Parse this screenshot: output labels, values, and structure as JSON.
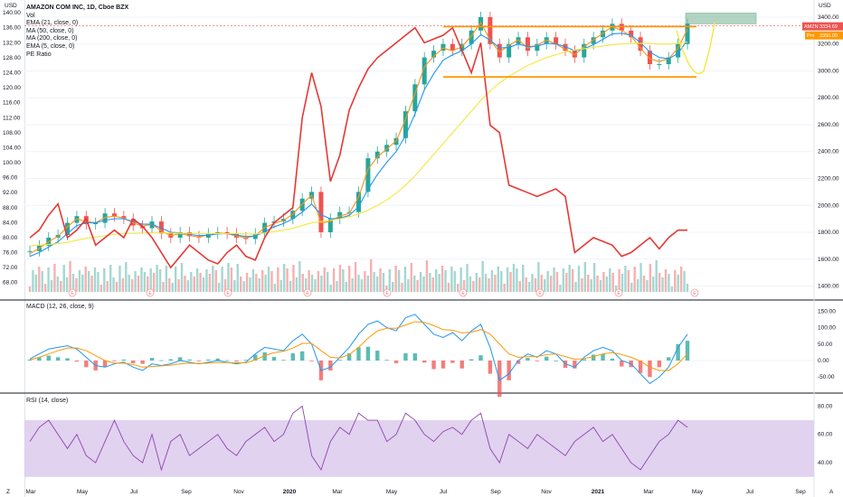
{
  "header": {
    "left_axis_unit": "USD",
    "right_axis_unit": "USD",
    "symbol_title": "AMAZON COM INC, 1D, Cboe BZX",
    "studies": [
      "Vol",
      "EMA (21, close, 0)",
      "MA (50, close, 0)",
      "MA (200, close, 0)",
      "EMA (5, close, 0)",
      "PE Ratio"
    ]
  },
  "badges": {
    "price_tag": "AMZN",
    "price_value": "3334.69",
    "pre_tag": "Pre",
    "pre_value": "3350.00",
    "earnings_marker": "E"
  },
  "colors": {
    "candle_up": "#26a69a",
    "candle_down": "#ef5350",
    "ema21": "#f7931a",
    "ma50": "#2196f3",
    "ma200": "#f5e642",
    "ema5": "#7b1fa2",
    "pe_ratio": "#e53935",
    "channel": "#ff9800",
    "target_box": "#7fb89a",
    "macd_line": "#2196f3",
    "signal_line": "#ff9800",
    "rsi_line": "#8e44ad",
    "rsi_band": "#d9c7ec"
  },
  "panes": {
    "macd_label": "MACD (12, 26, close, 9)",
    "rsi_label": "RSI (14, close)"
  },
  "chart_data": {
    "type": "line",
    "title": "AMAZON COM INC, 1D, Cboe BZX",
    "xaxis": {
      "labels": [
        "Mar",
        "May",
        "Jul",
        "Sep",
        "Nov",
        "2020",
        "Mar",
        "May",
        "Jul",
        "Sep",
        "Nov",
        "2021",
        "Mar",
        "May",
        "Jul",
        "Sep"
      ]
    },
    "price_axis_right": {
      "unit": "USD",
      "ticks": [
        1400,
        1600,
        1800,
        2000,
        2200,
        2400,
        2600,
        2800,
        3000,
        3200,
        3400
      ],
      "range": [
        1370,
        3460
      ]
    },
    "pe_axis_left": {
      "unit": "USD",
      "ticks": [
        68.0,
        72.0,
        76.0,
        80.0,
        84.0,
        88.0,
        92.0,
        96.0,
        100.0,
        104.0,
        108.0,
        112.0,
        116.0,
        120.0,
        124.0,
        128.0,
        132.0,
        136.0,
        140.0
      ],
      "range": [
        66.0,
        141.0
      ]
    },
    "series": [
      {
        "name": "AMZN",
        "values": [
          1660,
          1700,
          1760,
          1780,
          1870,
          1920,
          1860,
          1870,
          1940,
          1920,
          1900,
          1850,
          1830,
          1880,
          1790,
          1760,
          1800,
          1770,
          1760,
          1790,
          1800,
          1790,
          1760,
          1750,
          1790,
          1870,
          1880,
          1900,
          1960,
          2050,
          2100,
          1800,
          1900,
          1950,
          1950,
          2100,
          2350,
          2400,
          2450,
          2500,
          2700,
          2900,
          3100,
          3150,
          3200,
          3150,
          3200,
          3300,
          3400,
          3200,
          3100,
          3200,
          3250,
          3150,
          3200,
          3250,
          3200,
          3150,
          3100,
          3200,
          3250,
          3300,
          3350,
          3300,
          3250,
          3150,
          3050,
          3050,
          3100,
          3200,
          3350
        ]
      },
      {
        "name": "EMA (21, close, 0)",
        "values": [
          1640,
          1680,
          1730,
          1770,
          1840,
          1900,
          1880,
          1870,
          1910,
          1920,
          1905,
          1870,
          1845,
          1860,
          1810,
          1775,
          1790,
          1775,
          1765,
          1780,
          1795,
          1790,
          1772,
          1758,
          1775,
          1835,
          1865,
          1888,
          1935,
          2010,
          2075,
          1870,
          1880,
          1920,
          1940,
          2060,
          2270,
          2360,
          2420,
          2480,
          2640,
          2830,
          3030,
          3110,
          3170,
          3150,
          3180,
          3260,
          3360,
          3230,
          3140,
          3190,
          3230,
          3170,
          3190,
          3230,
          3200,
          3160,
          3120,
          3180,
          3230,
          3280,
          3330,
          3300,
          3260,
          3170,
          3090,
          3070,
          3090,
          3170,
          3310
        ]
      },
      {
        "name": "MA (50, close, 0)",
        "values": [
          1620,
          1650,
          1690,
          1730,
          1790,
          1850,
          1870,
          1870,
          1890,
          1900,
          1900,
          1880,
          1860,
          1860,
          1830,
          1800,
          1795,
          1785,
          1775,
          1778,
          1788,
          1790,
          1780,
          1768,
          1772,
          1805,
          1840,
          1865,
          1900,
          1950,
          2010,
          1930,
          1900,
          1905,
          1925,
          1990,
          2120,
          2230,
          2320,
          2400,
          2520,
          2680,
          2860,
          2980,
          3080,
          3120,
          3150,
          3200,
          3270,
          3230,
          3170,
          3175,
          3200,
          3180,
          3185,
          3205,
          3200,
          3180,
          3150,
          3165,
          3195,
          3235,
          3275,
          3280,
          3265,
          3210,
          3140,
          3100,
          3090,
          3130,
          3230
        ]
      },
      {
        "name": "MA (200, close, 0)",
        "values": [
          1700,
          1705,
          1710,
          1715,
          1725,
          1740,
          1755,
          1765,
          1775,
          1785,
          1790,
          1792,
          1793,
          1795,
          1795,
          1794,
          1793,
          1792,
          1790,
          1790,
          1790,
          1790,
          1790,
          1788,
          1787,
          1795,
          1805,
          1815,
          1830,
          1850,
          1870,
          1880,
          1890,
          1900,
          1915,
          1935,
          1965,
          2000,
          2040,
          2090,
          2150,
          2220,
          2300,
          2380,
          2460,
          2540,
          2620,
          2700,
          2780,
          2850,
          2910,
          2960,
          3000,
          3040,
          3070,
          3100,
          3120,
          3140,
          3155,
          3165,
          3175,
          3185,
          3195,
          3200,
          3205,
          3205,
          3205,
          3200,
          3200,
          3205,
          3215
        ]
      },
      {
        "name": "PE Ratio",
        "values": [
          80,
          82,
          86,
          89,
          80,
          82,
          85,
          78,
          80,
          82,
          80,
          85,
          83,
          80,
          76,
          72,
          75,
          78,
          76,
          74,
          73,
          76,
          78,
          75,
          74,
          80,
          84,
          86,
          88,
          112,
          124,
          115,
          95,
          102,
          114,
          120,
          125,
          128,
          130,
          132,
          134,
          136,
          132,
          133,
          134,
          136,
          130,
          124,
          132,
          110,
          108,
          94,
          93,
          92,
          91,
          92,
          93,
          91,
          76,
          78,
          80,
          79,
          78,
          75,
          76,
          78,
          80,
          77,
          80,
          82,
          82
        ]
      }
    ],
    "annotations": {
      "channel_top": 3330,
      "channel_bottom": 2955,
      "target_zone": [
        3350,
        3430
      ]
    },
    "macd": {
      "title": "MACD (12, 26, close, 9)",
      "ticks": [
        -50.0,
        0.0,
        50.0,
        100.0,
        150.0
      ],
      "range": [
        -85,
        170
      ],
      "macd": [
        5,
        20,
        35,
        40,
        45,
        35,
        10,
        -15,
        -20,
        -10,
        -5,
        -20,
        -30,
        -10,
        -15,
        -10,
        0,
        -5,
        -10,
        -5,
        0,
        -5,
        -10,
        -5,
        20,
        40,
        35,
        30,
        60,
        80,
        50,
        -30,
        -20,
        10,
        40,
        80,
        110,
        120,
        100,
        90,
        130,
        140,
        110,
        80,
        70,
        85,
        60,
        90,
        110,
        40,
        -60,
        -40,
        0,
        20,
        10,
        30,
        20,
        -10,
        -20,
        10,
        30,
        40,
        30,
        0,
        -10,
        -40,
        -70,
        -50,
        -20,
        40,
        80
      ],
      "signal": [
        2,
        10,
        20,
        30,
        38,
        38,
        30,
        15,
        0,
        -8,
        -8,
        -12,
        -20,
        -18,
        -16,
        -14,
        -10,
        -8,
        -9,
        -8,
        -6,
        -6,
        -7,
        -7,
        2,
        15,
        24,
        28,
        38,
        52,
        52,
        30,
        10,
        8,
        18,
        40,
        68,
        90,
        98,
        98,
        108,
        118,
        116,
        106,
        94,
        92,
        84,
        86,
        94,
        80,
        50,
        20,
        10,
        12,
        12,
        18,
        20,
        12,
        4,
        6,
        12,
        20,
        24,
        18,
        10,
        -2,
        -20,
        -30,
        -30,
        -10,
        20
      ]
    },
    "rsi": {
      "title": "RSI (14, close)",
      "ticks": [
        40.0,
        60.0,
        80.0
      ],
      "range": [
        26,
        86
      ],
      "band": [
        30,
        70
      ],
      "values": [
        55,
        65,
        70,
        60,
        50,
        60,
        45,
        40,
        55,
        70,
        55,
        45,
        40,
        60,
        35,
        55,
        60,
        45,
        50,
        55,
        60,
        50,
        45,
        55,
        60,
        65,
        55,
        60,
        75,
        80,
        45,
        35,
        55,
        65,
        60,
        75,
        70,
        70,
        55,
        60,
        75,
        70,
        60,
        55,
        62,
        65,
        60,
        70,
        75,
        50,
        40,
        60,
        55,
        50,
        60,
        55,
        50,
        45,
        55,
        60,
        65,
        55,
        60,
        50,
        40,
        35,
        45,
        55,
        60,
        70,
        65
      ]
    }
  }
}
